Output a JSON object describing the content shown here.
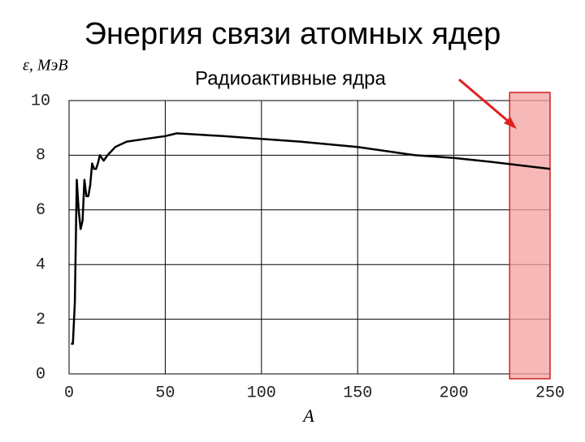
{
  "chart_data": {
    "type": "line",
    "title": "Энергия связи атомных ядер",
    "y_label": "ε, МэВ",
    "x_label": "A",
    "annotation": "Радиоактивные ядра",
    "x": [
      1,
      2,
      3,
      4,
      5,
      6,
      7,
      8,
      9,
      10,
      11,
      12,
      13,
      14,
      15,
      16,
      18,
      20,
      24,
      30,
      40,
      50,
      56,
      80,
      100,
      120,
      150,
      180,
      200,
      220,
      238,
      250
    ],
    "values": [
      1.1,
      1.1,
      2.6,
      7.1,
      6.0,
      5.3,
      5.6,
      7.1,
      6.5,
      6.5,
      6.9,
      7.7,
      7.5,
      7.5,
      7.7,
      8.0,
      7.8,
      8.0,
      8.3,
      8.5,
      8.6,
      8.7,
      8.8,
      8.7,
      8.6,
      8.5,
      8.3,
      8.0,
      7.9,
      7.75,
      7.6,
      7.5
    ],
    "color": "#000000",
    "highlight_xrange": [
      229,
      250
    ],
    "highlight_color": "#f4a0a0",
    "xlim": [
      0,
      250
    ],
    "ylim": [
      0,
      10
    ],
    "xticks": [
      0,
      50,
      100,
      150,
      200,
      250
    ],
    "yticks": [
      0,
      2,
      4,
      6,
      8,
      10
    ],
    "grid": true
  }
}
